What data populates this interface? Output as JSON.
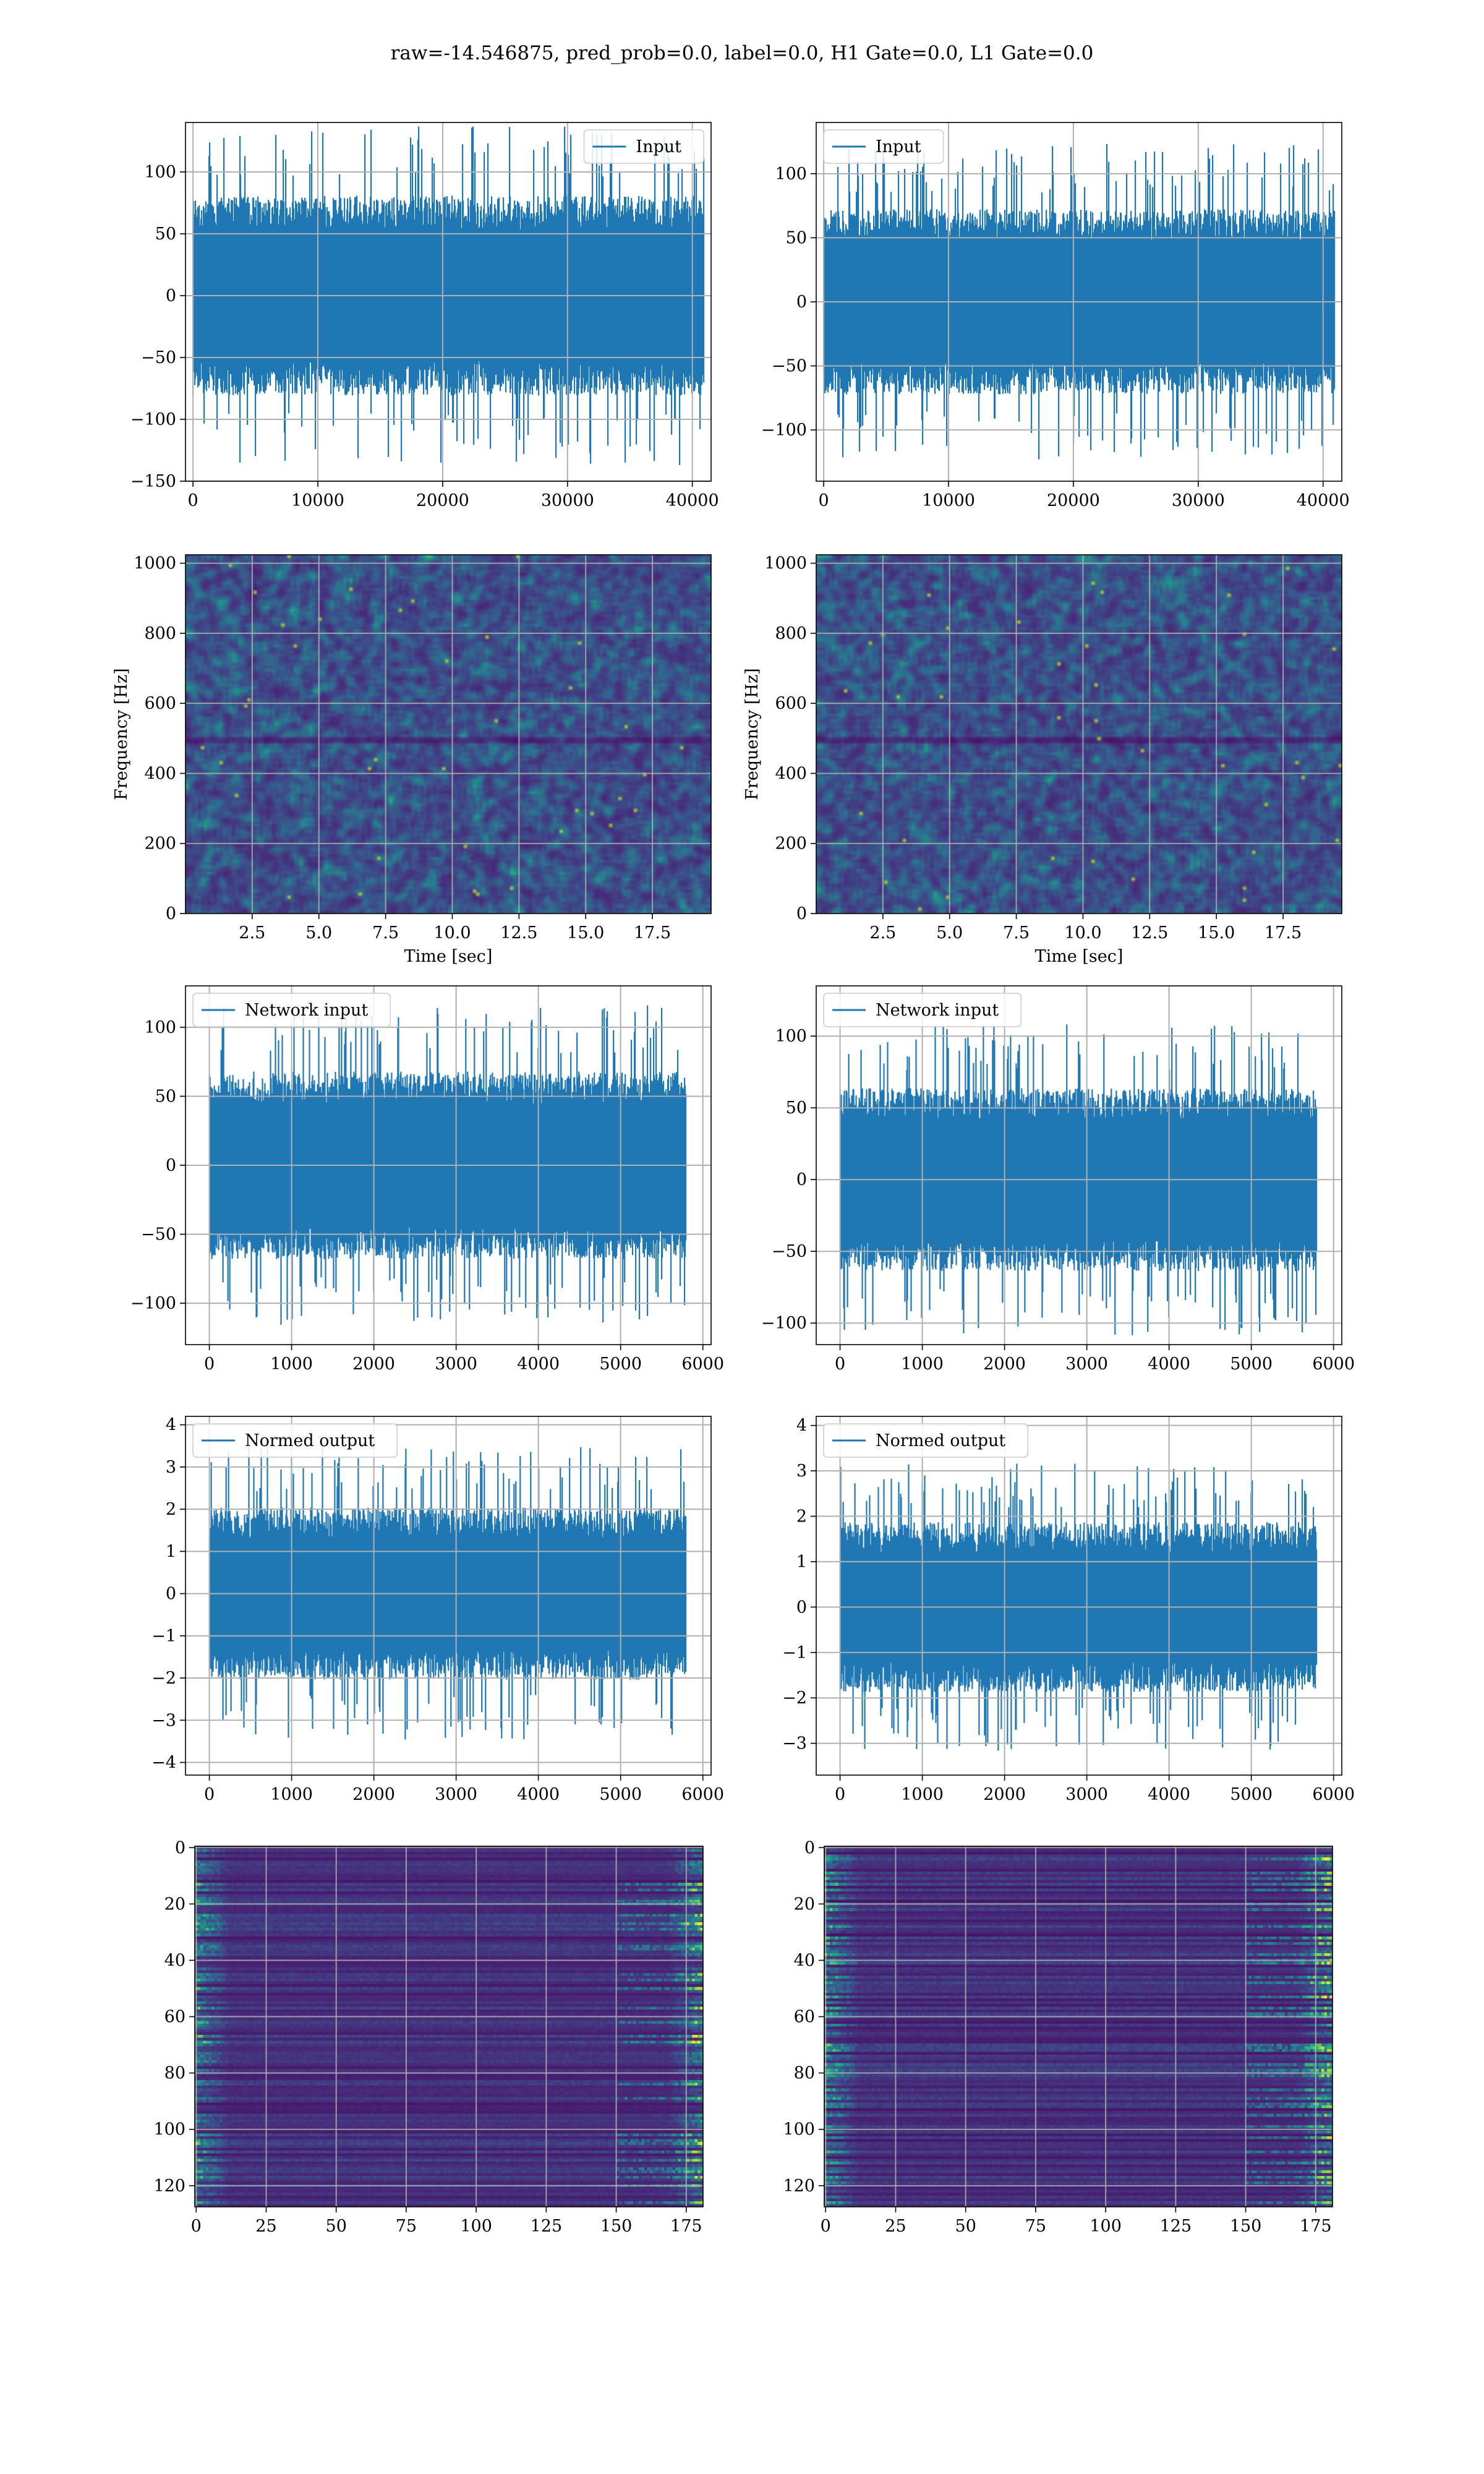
{
  "suptitle": "raw=-14.546875, pred_prob=0.0, label=0.0, H1 Gate=0.0, L1 Gate=0.0",
  "colors": {
    "line": "#1f77b4",
    "grid": "#b0b0b0",
    "axes_bg": "#ffffff"
  },
  "chart_data": [
    {
      "type": "line",
      "panel": "row1-left",
      "series": [
        {
          "name": "Input",
          "n_points": 40960,
          "amplitude_approx": 95
        }
      ],
      "xlim": [
        -600,
        41500
      ],
      "ylim": [
        -150,
        140
      ],
      "xticks": [
        0,
        10000,
        20000,
        30000,
        40000
      ],
      "xtick_labels": [
        "0",
        "10000",
        "20000",
        "30000",
        "40000"
      ],
      "yticks": [
        100,
        50,
        0,
        -50,
        -100,
        -150
      ],
      "ytick_labels": [
        "100",
        "50",
        "0",
        "−50",
        "−100",
        "−150"
      ],
      "xlabel": "",
      "ylabel": "",
      "legend_loc": "upper right",
      "grid": true
    },
    {
      "type": "line",
      "panel": "row1-right",
      "series": [
        {
          "name": "Input",
          "n_points": 40960,
          "amplitude_approx": 85
        }
      ],
      "xlim": [
        -600,
        41500
      ],
      "ylim": [
        -140,
        140
      ],
      "xticks": [
        0,
        10000,
        20000,
        30000,
        40000
      ],
      "xtick_labels": [
        "0",
        "10000",
        "20000",
        "30000",
        "40000"
      ],
      "yticks": [
        100,
        50,
        0,
        -50,
        -100
      ],
      "ytick_labels": [
        "100",
        "50",
        "0",
        "−50",
        "−100"
      ],
      "xlabel": "",
      "ylabel": "",
      "legend_loc": "upper left",
      "grid": true
    },
    {
      "type": "heatmap",
      "panel": "row2-left",
      "colormap": "viridis",
      "xlim": [
        0,
        19.7
      ],
      "ylim": [
        0,
        1024
      ],
      "xticks": [
        2.5,
        5.0,
        7.5,
        10.0,
        12.5,
        15.0,
        17.5
      ],
      "xtick_labels": [
        "2.5",
        "5.0",
        "7.5",
        "10.0",
        "12.5",
        "15.0",
        "17.5"
      ],
      "yticks": [
        0,
        200,
        400,
        600,
        800,
        1000
      ],
      "ytick_labels": [
        "0",
        "200",
        "400",
        "600",
        "800",
        "1000"
      ],
      "xlabel": "Time [sec]",
      "ylabel": "Frequency [Hz]",
      "grid": true
    },
    {
      "type": "heatmap",
      "panel": "row2-right",
      "colormap": "viridis",
      "xlim": [
        0,
        19.7
      ],
      "ylim": [
        0,
        1024
      ],
      "xticks": [
        2.5,
        5.0,
        7.5,
        10.0,
        12.5,
        15.0,
        17.5
      ],
      "xtick_labels": [
        "2.5",
        "5.0",
        "7.5",
        "10.0",
        "12.5",
        "15.0",
        "17.5"
      ],
      "yticks": [
        0,
        200,
        400,
        600,
        800,
        1000
      ],
      "ytick_labels": [
        "0",
        "200",
        "400",
        "600",
        "800",
        "1000"
      ],
      "xlabel": "Time [sec]",
      "ylabel": "Frequency [Hz]",
      "grid": true
    },
    {
      "type": "line",
      "panel": "row3-left",
      "series": [
        {
          "name": "Network input",
          "n_points": 5800,
          "amplitude_approx": 80
        }
      ],
      "xlim": [
        -290,
        6100
      ],
      "ylim": [
        -130,
        130
      ],
      "xticks": [
        0,
        1000,
        2000,
        3000,
        4000,
        5000,
        6000
      ],
      "xtick_labels": [
        "0",
        "1000",
        "2000",
        "3000",
        "4000",
        "5000",
        "6000"
      ],
      "yticks": [
        100,
        50,
        0,
        -50,
        -100
      ],
      "ytick_labels": [
        "100",
        "50",
        "0",
        "−50",
        "−100"
      ],
      "xlabel": "",
      "ylabel": "",
      "legend_loc": "upper left",
      "grid": true
    },
    {
      "type": "line",
      "panel": "row3-right",
      "series": [
        {
          "name": "Network input",
          "n_points": 5800,
          "amplitude_approx": 75
        }
      ],
      "xlim": [
        -290,
        6100
      ],
      "ylim": [
        -115,
        135
      ],
      "xticks": [
        0,
        1000,
        2000,
        3000,
        4000,
        5000,
        6000
      ],
      "xtick_labels": [
        "0",
        "1000",
        "2000",
        "3000",
        "4000",
        "5000",
        "6000"
      ],
      "yticks": [
        100,
        50,
        0,
        -50,
        -100
      ],
      "ytick_labels": [
        "100",
        "50",
        "0",
        "−50",
        "−100"
      ],
      "xlabel": "",
      "ylabel": "",
      "legend_loc": "upper left",
      "grid": true
    },
    {
      "type": "line",
      "panel": "row4-left",
      "series": [
        {
          "name": "Normed output",
          "n_points": 5800,
          "amplitude_approx": 2.4
        }
      ],
      "xlim": [
        -290,
        6100
      ],
      "ylim": [
        -4.3,
        4.2
      ],
      "xticks": [
        0,
        1000,
        2000,
        3000,
        4000,
        5000,
        6000
      ],
      "xtick_labels": [
        "0",
        "1000",
        "2000",
        "3000",
        "4000",
        "5000",
        "6000"
      ],
      "yticks": [
        4,
        3,
        2,
        1,
        0,
        -1,
        -2,
        -3,
        -4
      ],
      "ytick_labels": [
        "4",
        "3",
        "2",
        "1",
        "0",
        "−1",
        "−2",
        "−3",
        "−4"
      ],
      "xlabel": "",
      "ylabel": "",
      "legend_loc": "upper left",
      "grid": true
    },
    {
      "type": "line",
      "panel": "row4-right",
      "series": [
        {
          "name": "Normed output",
          "n_points": 5800,
          "amplitude_approx": 2.2
        }
      ],
      "xlim": [
        -290,
        6100
      ],
      "ylim": [
        -3.7,
        4.2
      ],
      "xticks": [
        0,
        1000,
        2000,
        3000,
        4000,
        5000,
        6000
      ],
      "xtick_labels": [
        "0",
        "1000",
        "2000",
        "3000",
        "4000",
        "5000",
        "6000"
      ],
      "yticks": [
        4,
        3,
        2,
        1,
        0,
        -1,
        -2,
        -3
      ],
      "ytick_labels": [
        "4",
        "3",
        "2",
        "1",
        "0",
        "−1",
        "−2",
        "−3"
      ],
      "xlabel": "",
      "ylabel": "",
      "legend_loc": "upper left",
      "grid": true
    },
    {
      "type": "heatmap",
      "panel": "row5-left",
      "colormap": "viridis",
      "xlim": [
        -0.5,
        181
      ],
      "ylim": [
        127.5,
        -0.5
      ],
      "y_inverted": true,
      "xticks": [
        0,
        25,
        50,
        75,
        100,
        125,
        150,
        175
      ],
      "xtick_labels": [
        "0",
        "25",
        "50",
        "75",
        "100",
        "125",
        "150",
        "175"
      ],
      "yticks": [
        0,
        20,
        40,
        60,
        80,
        100,
        120
      ],
      "ytick_labels": [
        "0",
        "20",
        "40",
        "60",
        "80",
        "100",
        "120"
      ],
      "xlabel": "",
      "ylabel": "",
      "grid": true
    },
    {
      "type": "heatmap",
      "panel": "row5-right",
      "colormap": "viridis",
      "xlim": [
        -0.5,
        181
      ],
      "ylim": [
        127.5,
        -0.5
      ],
      "y_inverted": true,
      "xticks": [
        0,
        25,
        50,
        75,
        100,
        125,
        150,
        175
      ],
      "xtick_labels": [
        "0",
        "25",
        "50",
        "75",
        "100",
        "125",
        "150",
        "175"
      ],
      "yticks": [
        0,
        20,
        40,
        60,
        80,
        100,
        120
      ],
      "ytick_labels": [
        "0",
        "20",
        "40",
        "60",
        "80",
        "100",
        "120"
      ],
      "xlabel": "",
      "ylabel": "",
      "grid": true
    }
  ]
}
